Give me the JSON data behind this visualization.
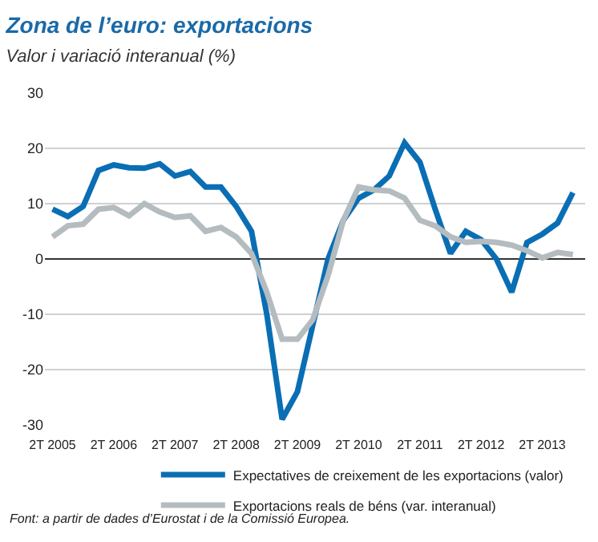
{
  "chart_data": {
    "type": "line",
    "title": "Zona de l’euro: exportacions",
    "subtitle": "Valor i variació interanual (%)",
    "categories": [
      "2T 2005",
      null,
      null,
      null,
      "2T 2006",
      null,
      null,
      null,
      "2T 2007",
      null,
      null,
      null,
      "2T 2008",
      null,
      null,
      null,
      "2T 2009",
      null,
      null,
      null,
      "2T 2010",
      null,
      null,
      null,
      "2T 2011",
      null,
      null,
      null,
      "2T 2012",
      null,
      null,
      null,
      "2T 2013",
      null,
      null
    ],
    "series": [
      {
        "name": "Expectatives de creixement de les exportacions (valor)",
        "color": "#0a6eb4",
        "values": [
          9,
          7.7,
          9.5,
          16,
          17,
          16.5,
          16.4,
          17.2,
          15,
          15.8,
          13,
          13,
          9.5,
          5,
          -10,
          -29,
          -24,
          -12,
          0,
          7,
          11,
          12.5,
          15,
          21,
          17.5,
          9,
          1,
          5,
          3.5,
          0,
          -6,
          3,
          4.5,
          6.5,
          12
        ]
      },
      {
        "name": "Exportacions reals de béns (var. interanual)",
        "color": "#b4bcc0",
        "values": [
          4,
          6,
          6.3,
          9,
          9.3,
          7.8,
          10,
          8.5,
          7.5,
          7.8,
          5,
          5.7,
          4,
          1,
          -6,
          -14.5,
          -14.5,
          -11,
          -3,
          7,
          13,
          12.5,
          12.3,
          11,
          7,
          6,
          4,
          3,
          3.2,
          3,
          2.5,
          1.5,
          0.2,
          1.2,
          0.8
        ]
      }
    ],
    "ylim": [
      -30,
      30
    ],
    "yticks": [
      -30,
      -20,
      -10,
      0,
      10,
      20,
      30
    ],
    "grid": "y",
    "legend": "bottom",
    "marker": "none",
    "line_style": "solid",
    "annotations": [
      "Font: a partir de dades d’Eurostat i de la Comissió Europea."
    ]
  }
}
